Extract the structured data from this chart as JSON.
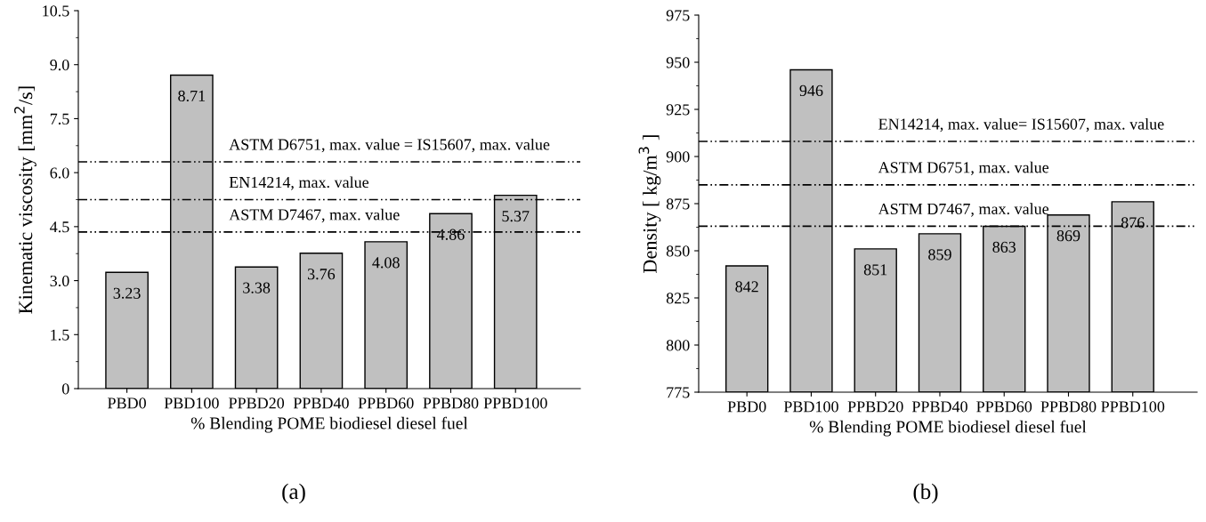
{
  "chart_data": [
    {
      "type": "bar",
      "xlabel": "% Blending POME biodiesel diesel fuel",
      "ylabel": "Kinematic viscosity [mm$^{2}$/s]",
      "categories": [
        "PBD0",
        "PBD100",
        "PPBD20",
        "PPBD40",
        "PPBD60",
        "PPBD80",
        "PPBD100"
      ],
      "values": [
        3.23,
        8.71,
        3.38,
        3.76,
        4.08,
        4.86,
        5.37
      ],
      "color": "#c0c0c0",
      "data_labels": true,
      "ylim": [
        0,
        10.5
      ],
      "yticks": [
        0,
        {
          "value": 1.5,
          "label": "1.5"
        },
        {
          "value": 3,
          "label": "3.0"
        },
        {
          "value": 4.5,
          "label": "4.5"
        },
        {
          "value": 6,
          "label": "6.0"
        },
        {
          "value": 7.5,
          "label": "7.5"
        },
        {
          "value": 9,
          "label": "9.0"
        },
        {
          "value": 10.5,
          "label": "10.5"
        }
      ],
      "ref_lines": [
        {
          "axis": "y",
          "value": 6.3,
          "label": "ASTM D6751, max. value = IS15607, max. value",
          "line_style": "dashdot",
          "color": "#000000"
        },
        {
          "axis": "y",
          "value": 5.25,
          "label": "EN14214, max. value",
          "line_style": "dashdot",
          "color": "#000000"
        },
        {
          "axis": "y",
          "value": 4.35,
          "label": "ASTM D7467, max. value",
          "line_style": "dashdot",
          "color": "#000000"
        }
      ],
      "annotations": [
        "(a)"
      ],
      "grid": false
    },
    {
      "type": "bar",
      "xlabel": "% Blending POME biodiesel diesel fuel",
      "ylabel": "Density [ kg/m$^{3}$ ]",
      "categories": [
        "PBD0",
        "PBD100",
        "PPBD20",
        "PPBD40",
        "PPBD60",
        "PPBD80",
        "PPBD100"
      ],
      "values": [
        842,
        946,
        851,
        859,
        863,
        869,
        876
      ],
      "color": "#c0c0c0",
      "data_labels": true,
      "ylim": [
        775,
        975
      ],
      "yticks": [
        775,
        800,
        825,
        850,
        875,
        900,
        925,
        950,
        975
      ],
      "ref_lines": [
        {
          "axis": "y",
          "value": 908,
          "label": "EN14214, max. value= IS15607, max. value",
          "line_style": "dashdot",
          "color": "#000000"
        },
        {
          "axis": "y",
          "value": 885,
          "label": "ASTM D6751, max. value",
          "line_style": "dashdot",
          "color": "#000000"
        },
        {
          "axis": "y",
          "value": 863,
          "label": "ASTM D7467, max. value",
          "line_style": "dashdot",
          "color": "#000000"
        }
      ],
      "annotations": [
        "(b)"
      ],
      "grid": false
    }
  ]
}
